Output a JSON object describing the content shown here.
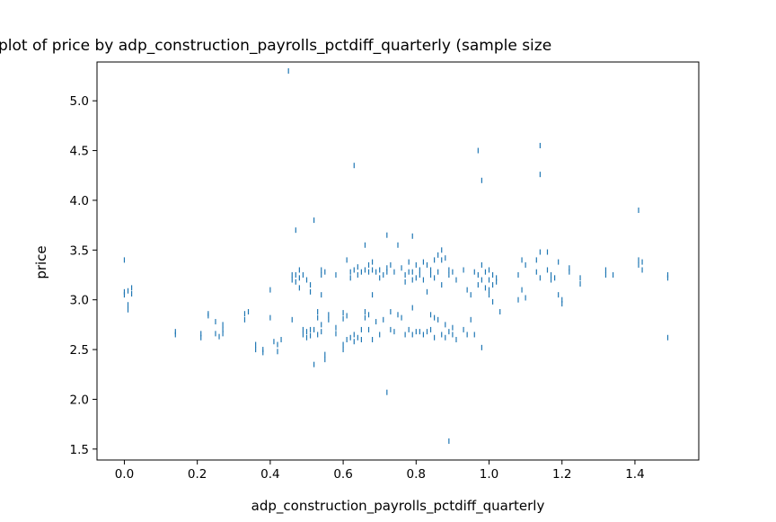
{
  "chart_data": {
    "type": "scatter",
    "title": "plot of price by adp_construction_payrolls_pctdiff_quarterly (sample size",
    "xlabel": "adp_construction_payrolls_pctdiff_quarterly",
    "ylabel": "price",
    "xlim": [
      -0.075,
      1.575
    ],
    "ylim": [
      1.39,
      5.39
    ],
    "x_ticks": [
      0.0,
      0.2,
      0.4,
      0.6,
      0.8,
      1.0,
      1.2,
      1.4
    ],
    "x_tick_labels": [
      "0.0",
      "0.2",
      "0.4",
      "0.6",
      "0.8",
      "1.0",
      "1.2",
      "1.4"
    ],
    "y_ticks": [
      1.5,
      2.0,
      2.5,
      3.0,
      3.5,
      4.0,
      4.5,
      5.0
    ],
    "y_tick_labels": [
      "1.5",
      "2.0",
      "2.5",
      "3.0",
      "3.5",
      "4.0",
      "4.5",
      "5.0"
    ],
    "grid": false,
    "marker": "vline",
    "color": "#1f77b4",
    "points": [
      [
        0.0,
        3.4
      ],
      [
        0.0,
        3.08
      ],
      [
        0.0,
        3.05
      ],
      [
        0.01,
        3.09
      ],
      [
        0.01,
        2.95
      ],
      [
        0.01,
        2.9
      ],
      [
        0.02,
        3.12
      ],
      [
        0.02,
        3.06
      ],
      [
        0.14,
        2.68
      ],
      [
        0.14,
        2.65
      ],
      [
        0.21,
        2.66
      ],
      [
        0.21,
        2.62
      ],
      [
        0.23,
        2.86
      ],
      [
        0.23,
        2.84
      ],
      [
        0.25,
        2.78
      ],
      [
        0.25,
        2.66
      ],
      [
        0.26,
        2.63
      ],
      [
        0.27,
        2.75
      ],
      [
        0.27,
        2.7
      ],
      [
        0.27,
        2.66
      ],
      [
        0.33,
        2.86
      ],
      [
        0.33,
        2.8
      ],
      [
        0.34,
        2.88
      ],
      [
        0.36,
        2.55
      ],
      [
        0.36,
        2.5
      ],
      [
        0.38,
        2.5
      ],
      [
        0.38,
        2.47
      ],
      [
        0.4,
        3.1
      ],
      [
        0.4,
        2.82
      ],
      [
        0.41,
        2.58
      ],
      [
        0.42,
        2.55
      ],
      [
        0.42,
        2.48
      ],
      [
        0.43,
        2.6
      ],
      [
        0.45,
        5.3
      ],
      [
        0.46,
        3.25
      ],
      [
        0.46,
        3.2
      ],
      [
        0.46,
        2.8
      ],
      [
        0.47,
        3.7
      ],
      [
        0.47,
        3.25
      ],
      [
        0.47,
        3.18
      ],
      [
        0.48,
        3.3
      ],
      [
        0.48,
        3.22
      ],
      [
        0.48,
        3.12
      ],
      [
        0.49,
        3.25
      ],
      [
        0.49,
        2.7
      ],
      [
        0.49,
        2.65
      ],
      [
        0.5,
        3.2
      ],
      [
        0.5,
        2.68
      ],
      [
        0.5,
        2.62
      ],
      [
        0.51,
        3.15
      ],
      [
        0.51,
        3.08
      ],
      [
        0.51,
        2.7
      ],
      [
        0.51,
        2.64
      ],
      [
        0.52,
        3.8
      ],
      [
        0.52,
        2.35
      ],
      [
        0.52,
        2.7
      ],
      [
        0.53,
        2.88
      ],
      [
        0.53,
        2.82
      ],
      [
        0.53,
        2.65
      ],
      [
        0.54,
        3.3
      ],
      [
        0.54,
        3.25
      ],
      [
        0.54,
        3.05
      ],
      [
        0.54,
        2.75
      ],
      [
        0.54,
        2.68
      ],
      [
        0.55,
        3.28
      ],
      [
        0.55,
        2.45
      ],
      [
        0.55,
        2.4
      ],
      [
        0.56,
        2.85
      ],
      [
        0.56,
        2.8
      ],
      [
        0.58,
        3.25
      ],
      [
        0.58,
        2.72
      ],
      [
        0.58,
        2.66
      ],
      [
        0.6,
        2.87
      ],
      [
        0.6,
        2.81
      ],
      [
        0.6,
        2.55
      ],
      [
        0.6,
        2.5
      ],
      [
        0.61,
        3.4
      ],
      [
        0.61,
        2.84
      ],
      [
        0.61,
        2.6
      ],
      [
        0.62,
        3.28
      ],
      [
        0.62,
        3.22
      ],
      [
        0.62,
        2.62
      ],
      [
        0.63,
        4.35
      ],
      [
        0.63,
        3.3
      ],
      [
        0.63,
        2.65
      ],
      [
        0.63,
        2.58
      ],
      [
        0.64,
        3.33
      ],
      [
        0.64,
        3.25
      ],
      [
        0.64,
        2.62
      ],
      [
        0.65,
        3.28
      ],
      [
        0.65,
        2.7
      ],
      [
        0.65,
        2.6
      ],
      [
        0.66,
        3.55
      ],
      [
        0.66,
        3.3
      ],
      [
        0.66,
        2.88
      ],
      [
        0.66,
        2.82
      ],
      [
        0.67,
        3.35
      ],
      [
        0.67,
        3.28
      ],
      [
        0.67,
        2.85
      ],
      [
        0.67,
        2.7
      ],
      [
        0.68,
        3.38
      ],
      [
        0.68,
        3.3
      ],
      [
        0.68,
        3.05
      ],
      [
        0.68,
        2.6
      ],
      [
        0.69,
        3.28
      ],
      [
        0.69,
        2.78
      ],
      [
        0.7,
        3.3
      ],
      [
        0.7,
        3.22
      ],
      [
        0.7,
        2.65
      ],
      [
        0.71,
        3.25
      ],
      [
        0.71,
        2.8
      ],
      [
        0.72,
        3.65
      ],
      [
        0.72,
        3.32
      ],
      [
        0.72,
        3.28
      ],
      [
        0.72,
        2.07
      ],
      [
        0.73,
        3.35
      ],
      [
        0.73,
        2.88
      ],
      [
        0.73,
        2.7
      ],
      [
        0.74,
        3.28
      ],
      [
        0.74,
        2.68
      ],
      [
        0.75,
        3.55
      ],
      [
        0.75,
        2.85
      ],
      [
        0.76,
        3.32
      ],
      [
        0.76,
        2.82
      ],
      [
        0.77,
        3.25
      ],
      [
        0.77,
        3.18
      ],
      [
        0.77,
        2.65
      ],
      [
        0.78,
        3.38
      ],
      [
        0.78,
        3.28
      ],
      [
        0.78,
        2.7
      ],
      [
        0.79,
        3.64
      ],
      [
        0.79,
        3.28
      ],
      [
        0.79,
        3.2
      ],
      [
        0.79,
        2.92
      ],
      [
        0.79,
        2.65
      ],
      [
        0.8,
        3.35
      ],
      [
        0.8,
        3.22
      ],
      [
        0.8,
        2.68
      ],
      [
        0.81,
        3.3
      ],
      [
        0.81,
        3.25
      ],
      [
        0.81,
        2.68
      ],
      [
        0.82,
        3.38
      ],
      [
        0.82,
        3.2
      ],
      [
        0.82,
        2.65
      ],
      [
        0.83,
        3.35
      ],
      [
        0.83,
        3.08
      ],
      [
        0.83,
        2.68
      ],
      [
        0.84,
        3.3
      ],
      [
        0.84,
        3.25
      ],
      [
        0.84,
        2.85
      ],
      [
        0.84,
        2.7
      ],
      [
        0.85,
        3.4
      ],
      [
        0.85,
        3.22
      ],
      [
        0.85,
        2.82
      ],
      [
        0.85,
        2.62
      ],
      [
        0.86,
        3.45
      ],
      [
        0.86,
        3.28
      ],
      [
        0.86,
        2.8
      ],
      [
        0.87,
        3.5
      ],
      [
        0.87,
        3.4
      ],
      [
        0.87,
        3.15
      ],
      [
        0.87,
        2.65
      ],
      [
        0.88,
        3.42
      ],
      [
        0.88,
        2.75
      ],
      [
        0.88,
        2.62
      ],
      [
        0.89,
        3.3
      ],
      [
        0.89,
        3.25
      ],
      [
        0.89,
        2.68
      ],
      [
        0.89,
        1.58
      ],
      [
        0.9,
        3.28
      ],
      [
        0.9,
        2.72
      ],
      [
        0.9,
        2.65
      ],
      [
        0.91,
        3.2
      ],
      [
        0.91,
        2.6
      ],
      [
        0.93,
        3.3
      ],
      [
        0.93,
        2.7
      ],
      [
        0.94,
        3.1
      ],
      [
        0.94,
        2.65
      ],
      [
        0.95,
        3.05
      ],
      [
        0.95,
        2.8
      ],
      [
        0.96,
        3.28
      ],
      [
        0.96,
        2.65
      ],
      [
        0.97,
        4.5
      ],
      [
        0.97,
        3.25
      ],
      [
        0.97,
        3.15
      ],
      [
        0.98,
        4.2
      ],
      [
        0.98,
        3.35
      ],
      [
        0.98,
        3.2
      ],
      [
        0.98,
        2.52
      ],
      [
        0.99,
        3.28
      ],
      [
        0.99,
        3.12
      ],
      [
        1.0,
        3.3
      ],
      [
        1.0,
        3.2
      ],
      [
        1.0,
        3.1
      ],
      [
        1.0,
        3.05
      ],
      [
        1.01,
        3.25
      ],
      [
        1.01,
        3.15
      ],
      [
        1.01,
        2.98
      ],
      [
        1.02,
        3.22
      ],
      [
        1.02,
        3.18
      ],
      [
        1.03,
        2.88
      ],
      [
        1.08,
        3.25
      ],
      [
        1.08,
        3.0
      ],
      [
        1.09,
        3.4
      ],
      [
        1.09,
        3.1
      ],
      [
        1.1,
        3.35
      ],
      [
        1.1,
        3.02
      ],
      [
        1.13,
        3.4
      ],
      [
        1.13,
        3.28
      ],
      [
        1.14,
        4.55
      ],
      [
        1.14,
        4.26
      ],
      [
        1.14,
        3.48
      ],
      [
        1.14,
        3.22
      ],
      [
        1.16,
        3.48
      ],
      [
        1.16,
        3.3
      ],
      [
        1.17,
        3.25
      ],
      [
        1.17,
        3.2
      ],
      [
        1.18,
        3.22
      ],
      [
        1.19,
        3.38
      ],
      [
        1.19,
        3.05
      ],
      [
        1.2,
        3.0
      ],
      [
        1.2,
        2.96
      ],
      [
        1.22,
        3.32
      ],
      [
        1.22,
        3.28
      ],
      [
        1.25,
        3.22
      ],
      [
        1.25,
        3.16
      ],
      [
        1.32,
        3.3
      ],
      [
        1.32,
        3.25
      ],
      [
        1.34,
        3.25
      ],
      [
        1.41,
        3.9
      ],
      [
        1.41,
        3.4
      ],
      [
        1.41,
        3.35
      ],
      [
        1.42,
        3.38
      ],
      [
        1.42,
        3.3
      ],
      [
        1.49,
        3.25
      ],
      [
        1.49,
        3.22
      ],
      [
        1.49,
        2.62
      ]
    ]
  }
}
